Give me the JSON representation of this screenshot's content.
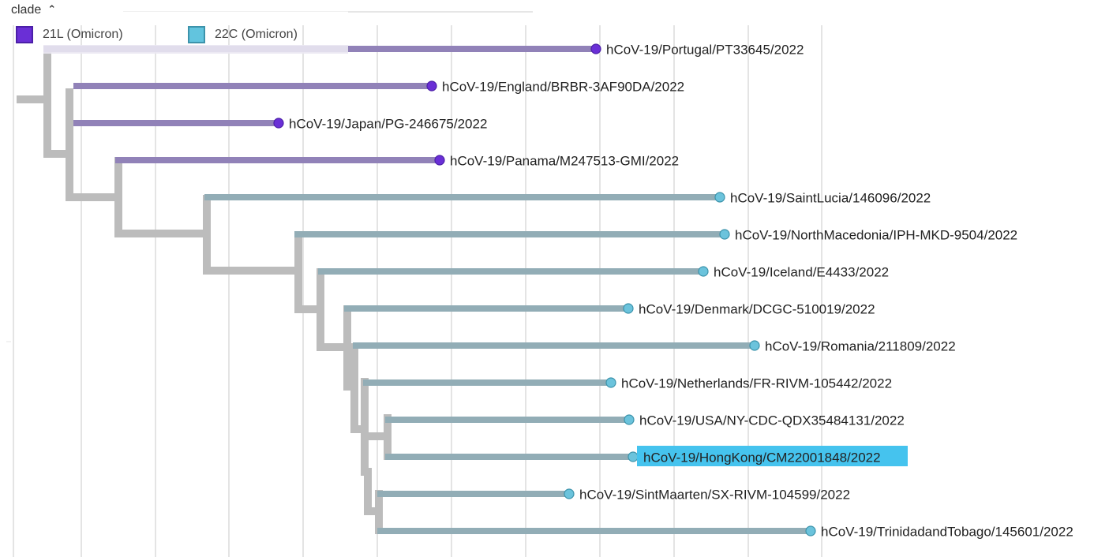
{
  "legend": {
    "title": "clade",
    "toggle_icon": "chevron-up-icon",
    "items": [
      {
        "label": "21L (Omicron)",
        "color": "#6a2fd6",
        "border": "#4b1fa8"
      },
      {
        "label": "22C (Omicron)",
        "color": "#62c4de",
        "border": "#3c93ab"
      }
    ]
  },
  "colors": {
    "clade_21L_branch": "#9182b8",
    "clade_22C_branch": "#92adb6",
    "internal_branch": "#bcbcbc",
    "clade_21L_node": "#6a2fd6",
    "clade_22C_node": "#6bc3dc",
    "highlight": "#45c3ee",
    "grid": "#e4e4e4"
  },
  "tree": {
    "tips": [
      {
        "name": "hCoV-19/Portugal/PT33645/2022",
        "clade": "21L"
      },
      {
        "name": "hCoV-19/England/BRBR-3AF90DA/2022",
        "clade": "21L"
      },
      {
        "name": "hCoV-19/Japan/PG-246675/2022",
        "clade": "21L"
      },
      {
        "name": "hCoV-19/Panama/M247513-GMI/2022",
        "clade": "21L"
      },
      {
        "name": "hCoV-19/SaintLucia/146096/2022",
        "clade": "22C"
      },
      {
        "name": "hCoV-19/NorthMacedonia/IPH-MKD-9504/2022",
        "clade": "22C"
      },
      {
        "name": "hCoV-19/Iceland/E4433/2022",
        "clade": "22C"
      },
      {
        "name": "hCoV-19/Denmark/DCGC-510019/2022",
        "clade": "22C"
      },
      {
        "name": "hCoV-19/Romania/211809/2022",
        "clade": "22C"
      },
      {
        "name": "hCoV-19/Netherlands/FR-RIVM-105442/2022",
        "clade": "22C"
      },
      {
        "name": "hCoV-19/USA/NY-CDC-QDX35484131/2022",
        "clade": "22C"
      },
      {
        "name": "hCoV-19/HongKong/CM22001848/2022",
        "clade": "22C",
        "highlighted": true
      },
      {
        "name": "hCoV-19/SintMaarten/SX-RIVM-104599/2022",
        "clade": "22C"
      },
      {
        "name": "hCoV-19/TrinidadandTobago/145601/2022",
        "clade": "22C"
      }
    ]
  }
}
